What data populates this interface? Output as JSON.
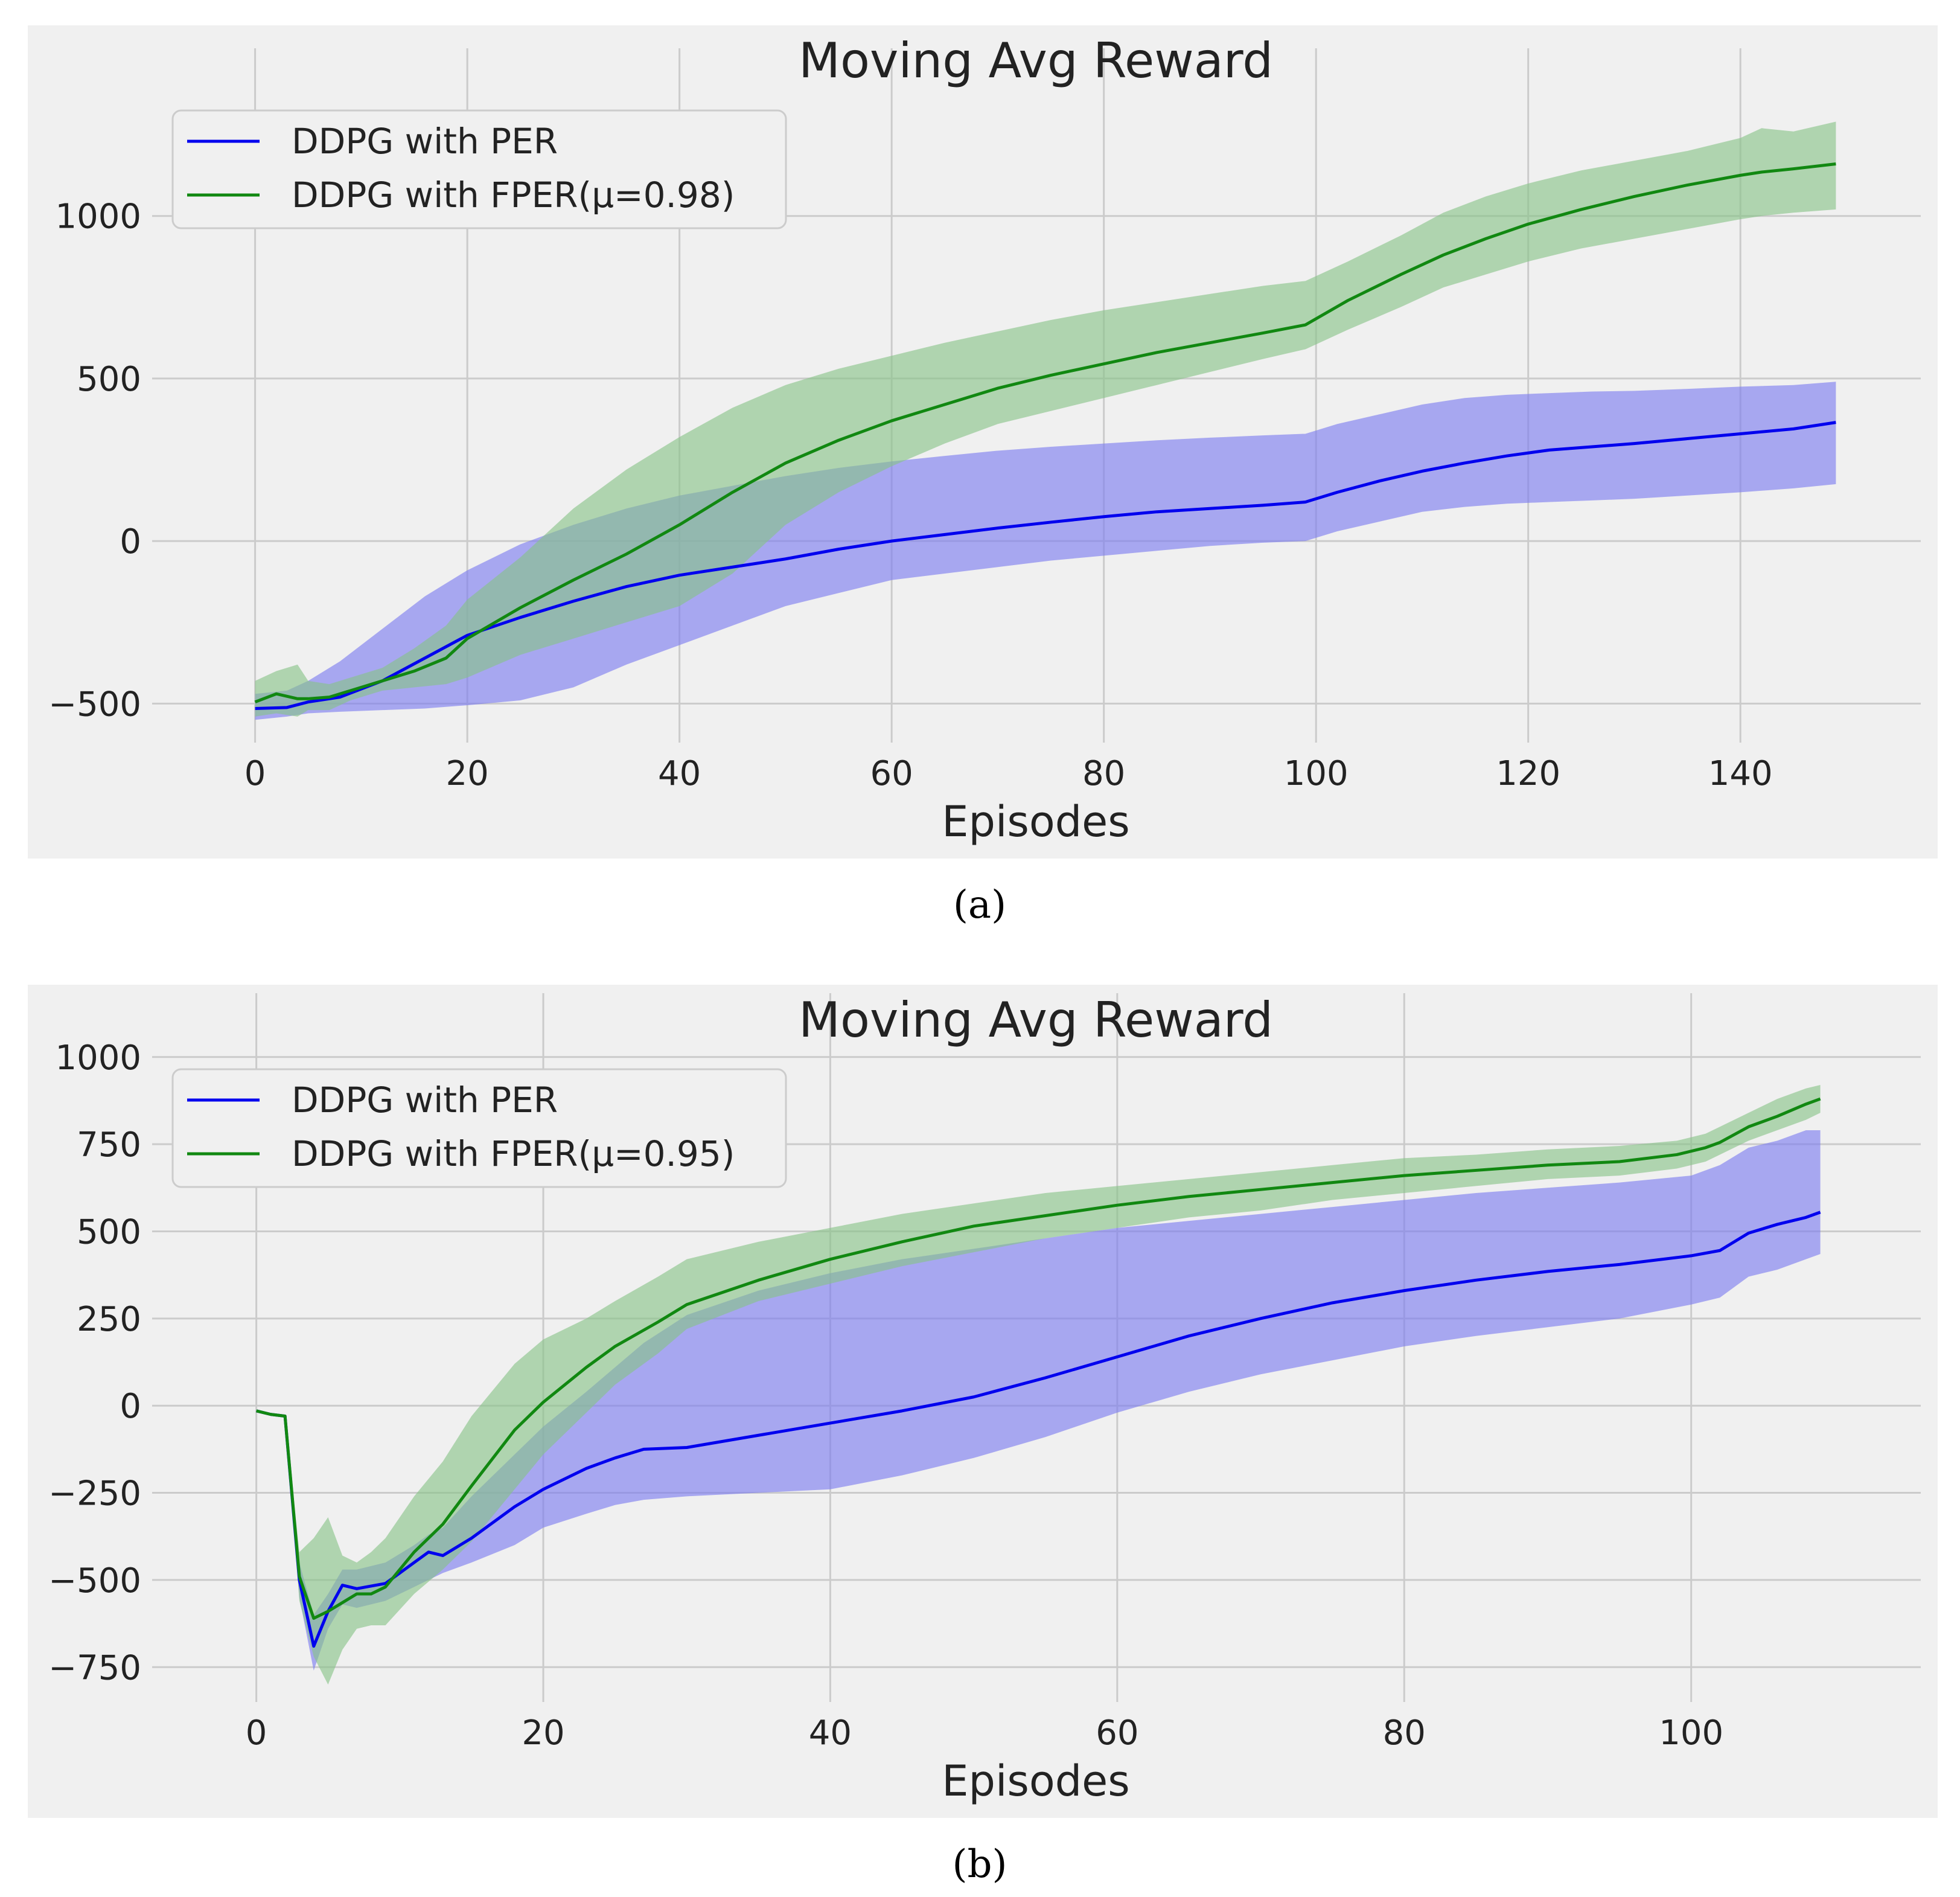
{
  "chart_data": [
    {
      "type": "line",
      "panel_label": "(a)",
      "title": "Moving Avg Reward",
      "xlabel": "Episodes",
      "ylabel": "",
      "xlim": [
        -8,
        157
      ],
      "ylim": [
        -620,
        1330
      ],
      "xticks": [
        0,
        20,
        40,
        60,
        80,
        100,
        120,
        140
      ],
      "yticks": [
        -500,
        0,
        500,
        1000
      ],
      "grid": true,
      "legend_position": "top-left",
      "series": [
        {
          "name": "DDPG with PER",
          "color": "#0000ee",
          "band_color": "#7b7bf0",
          "x": [
            0,
            3,
            5,
            8,
            12,
            16,
            20,
            25,
            30,
            35,
            40,
            45,
            50,
            55,
            60,
            65,
            70,
            75,
            80,
            85,
            90,
            95,
            99,
            102,
            106,
            110,
            114,
            118,
            122,
            126,
            130,
            135,
            140,
            145,
            149
          ],
          "y": [
            -515,
            -512,
            -495,
            -480,
            -430,
            -360,
            -290,
            -235,
            -185,
            -140,
            -105,
            -80,
            -55,
            -25,
            0,
            20,
            40,
            58,
            75,
            90,
            100,
            110,
            120,
            150,
            185,
            215,
            240,
            262,
            280,
            290,
            300,
            315,
            330,
            345,
            365
          ],
          "upper": [
            -470,
            -460,
            -430,
            -370,
            -270,
            -170,
            -90,
            -10,
            50,
            100,
            140,
            170,
            200,
            225,
            245,
            262,
            278,
            290,
            300,
            310,
            318,
            325,
            330,
            360,
            390,
            420,
            440,
            450,
            455,
            460,
            462,
            468,
            475,
            480,
            490
          ],
          "lower": [
            -550,
            -540,
            -530,
            -525,
            -520,
            -515,
            -505,
            -490,
            -450,
            -380,
            -320,
            -260,
            -200,
            -160,
            -120,
            -100,
            -80,
            -60,
            -45,
            -30,
            -15,
            -5,
            0,
            30,
            60,
            90,
            105,
            115,
            120,
            125,
            130,
            140,
            150,
            162,
            175
          ]
        },
        {
          "name": "DDPG with FPER(μ=0.98)",
          "color": "#118811",
          "band_color": "#88c488",
          "x": [
            0,
            2,
            4,
            5,
            7,
            9,
            12,
            15,
            18,
            20,
            25,
            30,
            35,
            40,
            45,
            50,
            55,
            60,
            65,
            70,
            75,
            80,
            85,
            90,
            95,
            99,
            103,
            108,
            112,
            116,
            120,
            125,
            130,
            135,
            140,
            142,
            145,
            149
          ],
          "y": [
            -495,
            -470,
            -485,
            -485,
            -480,
            -460,
            -430,
            -400,
            -360,
            -300,
            -205,
            -120,
            -40,
            50,
            150,
            240,
            310,
            370,
            420,
            470,
            510,
            545,
            580,
            610,
            640,
            665,
            740,
            820,
            880,
            930,
            975,
            1020,
            1060,
            1095,
            1125,
            1135,
            1145,
            1160
          ],
          "upper": [
            -430,
            -400,
            -380,
            -430,
            -440,
            -420,
            -390,
            -330,
            -260,
            -180,
            -50,
            100,
            220,
            320,
            410,
            480,
            530,
            570,
            610,
            645,
            680,
            710,
            735,
            760,
            785,
            800,
            860,
            940,
            1010,
            1060,
            1100,
            1140,
            1170,
            1200,
            1240,
            1270,
            1260,
            1290
          ],
          "lower": [
            -540,
            -530,
            -540,
            -520,
            -520,
            -490,
            -460,
            -450,
            -440,
            -420,
            -350,
            -300,
            -250,
            -200,
            -100,
            50,
            150,
            230,
            300,
            360,
            400,
            440,
            480,
            520,
            560,
            590,
            650,
            720,
            780,
            820,
            860,
            900,
            930,
            960,
            990,
            1000,
            1010,
            1020
          ]
        }
      ]
    },
    {
      "type": "line",
      "panel_label": "(b)",
      "title": "Moving Avg Reward",
      "xlabel": "Episodes",
      "ylabel": "",
      "xlim": [
        -6,
        116
      ],
      "ylim": [
        -850,
        1010
      ],
      "xticks": [
        0,
        20,
        40,
        60,
        80,
        100
      ],
      "yticks": [
        -750,
        -500,
        -250,
        0,
        250,
        500,
        750,
        1000
      ],
      "grid": true,
      "legend_position": "top-left",
      "series": [
        {
          "name": "DDPG with PER",
          "color": "#0000ee",
          "band_color": "#7b7bf0",
          "x": [
            0,
            1,
            2,
            3,
            4,
            5,
            6,
            7,
            9,
            11,
            12,
            13,
            15,
            18,
            20,
            23,
            25,
            27,
            30,
            35,
            40,
            45,
            50,
            55,
            60,
            65,
            70,
            75,
            80,
            85,
            90,
            95,
            100,
            102,
            104,
            106,
            108,
            109
          ],
          "y": [
            -15,
            -25,
            -30,
            -500,
            -690,
            -590,
            -515,
            -525,
            -510,
            -450,
            -420,
            -430,
            -380,
            -290,
            -240,
            -180,
            -150,
            -125,
            -120,
            -85,
            -50,
            -15,
            25,
            80,
            140,
            200,
            250,
            295,
            330,
            360,
            385,
            405,
            430,
            445,
            495,
            520,
            540,
            555
          ],
          "upper": [
            -15,
            -25,
            -30,
            -450,
            -600,
            -540,
            -470,
            -470,
            -450,
            -400,
            -370,
            -350,
            -260,
            -140,
            -60,
            40,
            110,
            180,
            260,
            330,
            380,
            420,
            450,
            480,
            510,
            530,
            550,
            570,
            590,
            610,
            625,
            640,
            660,
            690,
            740,
            760,
            790,
            790
          ],
          "lower": [
            -15,
            -25,
            -30,
            -550,
            -760,
            -640,
            -570,
            -580,
            -560,
            -520,
            -500,
            -480,
            -450,
            -400,
            -350,
            -310,
            -285,
            -270,
            -260,
            -250,
            -240,
            -200,
            -150,
            -90,
            -20,
            40,
            90,
            130,
            170,
            200,
            225,
            250,
            290,
            310,
            370,
            390,
            420,
            435
          ]
        },
        {
          "name": "DDPG with FPER(μ=0.95)",
          "color": "#118811",
          "band_color": "#88c488",
          "x": [
            0,
            1,
            2,
            3,
            4,
            5,
            6,
            7,
            8,
            9,
            11,
            13,
            15,
            18,
            20,
            23,
            25,
            28,
            30,
            35,
            40,
            45,
            50,
            55,
            60,
            65,
            70,
            75,
            80,
            85,
            90,
            95,
            99,
            101,
            102,
            104,
            106,
            108,
            109
          ],
          "y": [
            -15,
            -25,
            -30,
            -490,
            -610,
            -590,
            -565,
            -540,
            -540,
            -520,
            -420,
            -340,
            -230,
            -70,
            10,
            110,
            170,
            240,
            290,
            360,
            420,
            470,
            515,
            545,
            575,
            600,
            620,
            640,
            660,
            675,
            690,
            700,
            720,
            740,
            755,
            800,
            830,
            865,
            880
          ],
          "upper": [
            -15,
            -25,
            -30,
            -420,
            -380,
            -320,
            -430,
            -450,
            -420,
            -380,
            -260,
            -160,
            -30,
            120,
            190,
            250,
            300,
            370,
            420,
            470,
            510,
            550,
            580,
            610,
            630,
            650,
            670,
            690,
            710,
            720,
            735,
            745,
            760,
            780,
            800,
            840,
            880,
            910,
            920
          ],
          "lower": [
            -15,
            -25,
            -30,
            -560,
            -720,
            -800,
            -700,
            -640,
            -630,
            -630,
            -540,
            -470,
            -390,
            -240,
            -140,
            -20,
            60,
            150,
            220,
            300,
            350,
            400,
            440,
            480,
            510,
            540,
            560,
            590,
            610,
            630,
            650,
            660,
            680,
            700,
            720,
            760,
            790,
            820,
            840
          ]
        }
      ]
    }
  ]
}
